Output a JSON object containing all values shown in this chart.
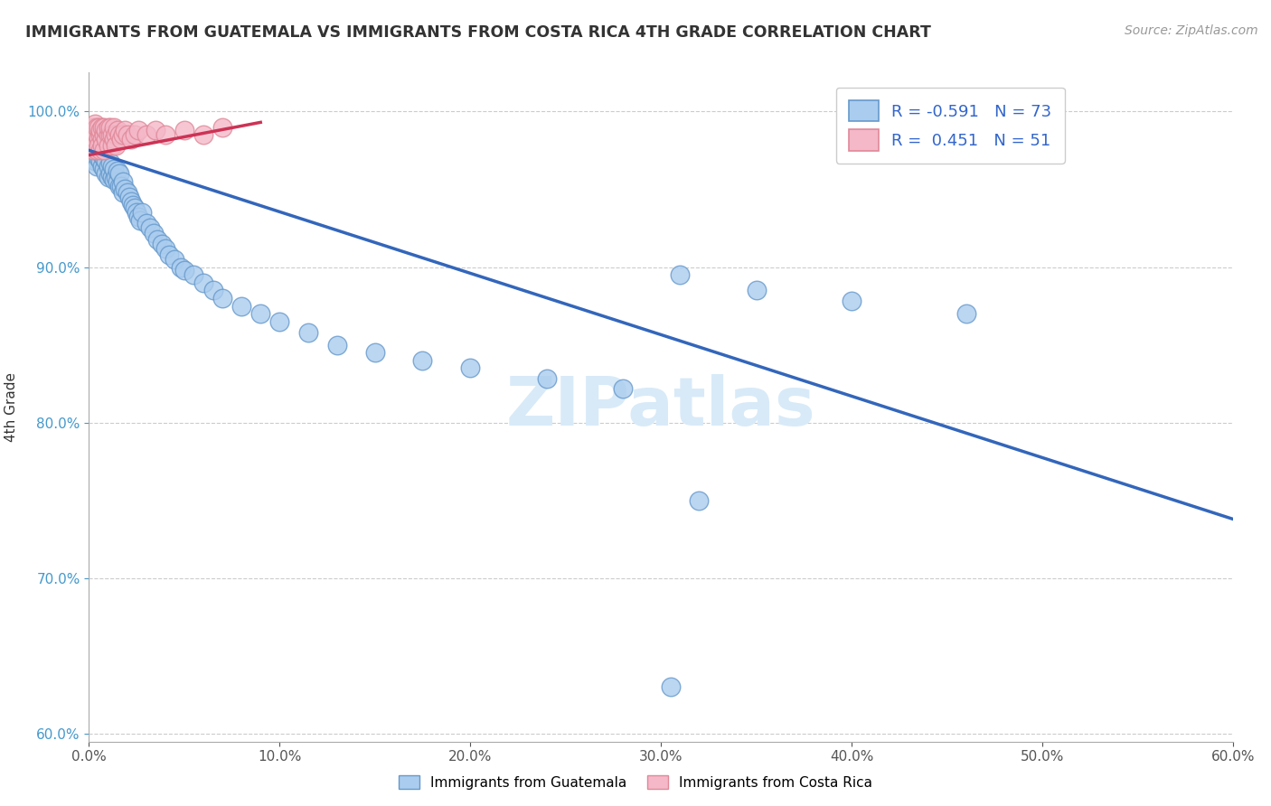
{
  "title": "IMMIGRANTS FROM GUATEMALA VS IMMIGRANTS FROM COSTA RICA 4TH GRADE CORRELATION CHART",
  "source_text": "Source: ZipAtlas.com",
  "ylabel": "4th Grade",
  "xlim": [
    0.0,
    0.6
  ],
  "ylim": [
    0.595,
    1.025
  ],
  "xtick_vals": [
    0.0,
    0.1,
    0.2,
    0.3,
    0.4,
    0.5,
    0.6
  ],
  "ytick_vals": [
    0.6,
    0.7,
    0.8,
    0.9,
    1.0
  ],
  "blue_color": "#aaccee",
  "blue_edge": "#6699cc",
  "pink_color": "#f4b8c8",
  "pink_edge": "#e08898",
  "blue_line_color": "#3366bb",
  "pink_line_color": "#cc3355",
  "R_blue": -0.591,
  "N_blue": 73,
  "R_pink": 0.451,
  "N_pink": 51,
  "watermark": "ZIPatlas",
  "blue_line_x0": 0.0,
  "blue_line_y0": 0.975,
  "blue_line_x1": 0.6,
  "blue_line_y1": 0.738,
  "pink_line_x0": 0.0,
  "pink_line_y0": 0.972,
  "pink_line_x1": 0.09,
  "pink_line_y1": 0.993,
  "blue_x": [
    0.001,
    0.002,
    0.002,
    0.003,
    0.003,
    0.004,
    0.004,
    0.005,
    0.005,
    0.006,
    0.006,
    0.007,
    0.007,
    0.008,
    0.008,
    0.009,
    0.009,
    0.01,
    0.01,
    0.011,
    0.011,
    0.012,
    0.012,
    0.013,
    0.013,
    0.014,
    0.015,
    0.015,
    0.016,
    0.016,
    0.017,
    0.018,
    0.018,
    0.019,
    0.02,
    0.021,
    0.022,
    0.023,
    0.024,
    0.025,
    0.026,
    0.027,
    0.028,
    0.03,
    0.032,
    0.034,
    0.036,
    0.038,
    0.04,
    0.042,
    0.045,
    0.048,
    0.05,
    0.055,
    0.06,
    0.065,
    0.07,
    0.08,
    0.09,
    0.1,
    0.115,
    0.13,
    0.15,
    0.175,
    0.2,
    0.24,
    0.28,
    0.31,
    0.35,
    0.4,
    0.46,
    0.32,
    0.305
  ],
  "blue_y": [
    0.975,
    0.97,
    0.98,
    0.968,
    0.978,
    0.965,
    0.975,
    0.97,
    0.978,
    0.968,
    0.975,
    0.965,
    0.972,
    0.963,
    0.97,
    0.96,
    0.968,
    0.958,
    0.965,
    0.96,
    0.967,
    0.958,
    0.965,
    0.956,
    0.963,
    0.958,
    0.955,
    0.962,
    0.952,
    0.96,
    0.952,
    0.948,
    0.955,
    0.95,
    0.948,
    0.945,
    0.942,
    0.94,
    0.938,
    0.935,
    0.932,
    0.93,
    0.935,
    0.928,
    0.925,
    0.922,
    0.918,
    0.915,
    0.912,
    0.908,
    0.905,
    0.9,
    0.898,
    0.895,
    0.89,
    0.885,
    0.88,
    0.875,
    0.87,
    0.865,
    0.858,
    0.85,
    0.845,
    0.84,
    0.835,
    0.828,
    0.822,
    0.895,
    0.885,
    0.878,
    0.87,
    0.75,
    0.63
  ],
  "pink_x": [
    0.001,
    0.001,
    0.002,
    0.002,
    0.002,
    0.003,
    0.003,
    0.003,
    0.004,
    0.004,
    0.004,
    0.005,
    0.005,
    0.005,
    0.006,
    0.006,
    0.006,
    0.007,
    0.007,
    0.007,
    0.008,
    0.008,
    0.008,
    0.009,
    0.009,
    0.01,
    0.01,
    0.01,
    0.011,
    0.011,
    0.012,
    0.012,
    0.013,
    0.013,
    0.014,
    0.014,
    0.015,
    0.016,
    0.017,
    0.018,
    0.019,
    0.02,
    0.022,
    0.024,
    0.026,
    0.03,
    0.035,
    0.04,
    0.05,
    0.06,
    0.07
  ],
  "pink_y": [
    0.98,
    0.988,
    0.982,
    0.99,
    0.975,
    0.985,
    0.992,
    0.978,
    0.985,
    0.99,
    0.975,
    0.983,
    0.99,
    0.978,
    0.985,
    0.988,
    0.975,
    0.982,
    0.99,
    0.978,
    0.985,
    0.99,
    0.975,
    0.982,
    0.988,
    0.985,
    0.99,
    0.978,
    0.985,
    0.99,
    0.978,
    0.985,
    0.982,
    0.99,
    0.985,
    0.978,
    0.988,
    0.985,
    0.982,
    0.985,
    0.988,
    0.985,
    0.982,
    0.985,
    0.988,
    0.985,
    0.988,
    0.985,
    0.988,
    0.985,
    0.99
  ]
}
